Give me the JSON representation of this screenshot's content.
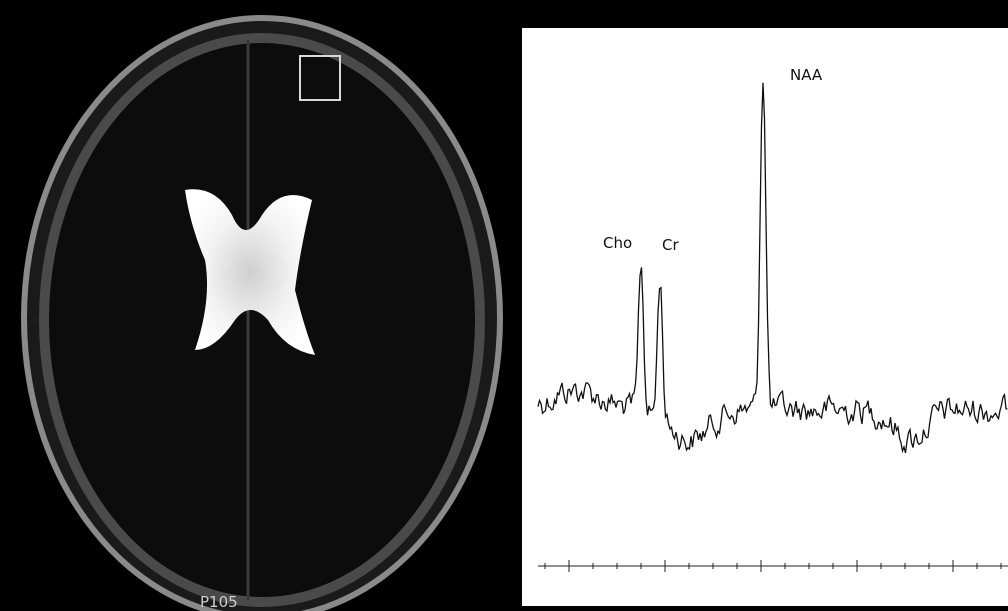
{
  "mri": {
    "slice_label": "P105"
  },
  "spectrum": {
    "peaks": [
      {
        "label": "Cho"
      },
      {
        "label": "Cr"
      },
      {
        "label": "NAA"
      }
    ]
  }
}
